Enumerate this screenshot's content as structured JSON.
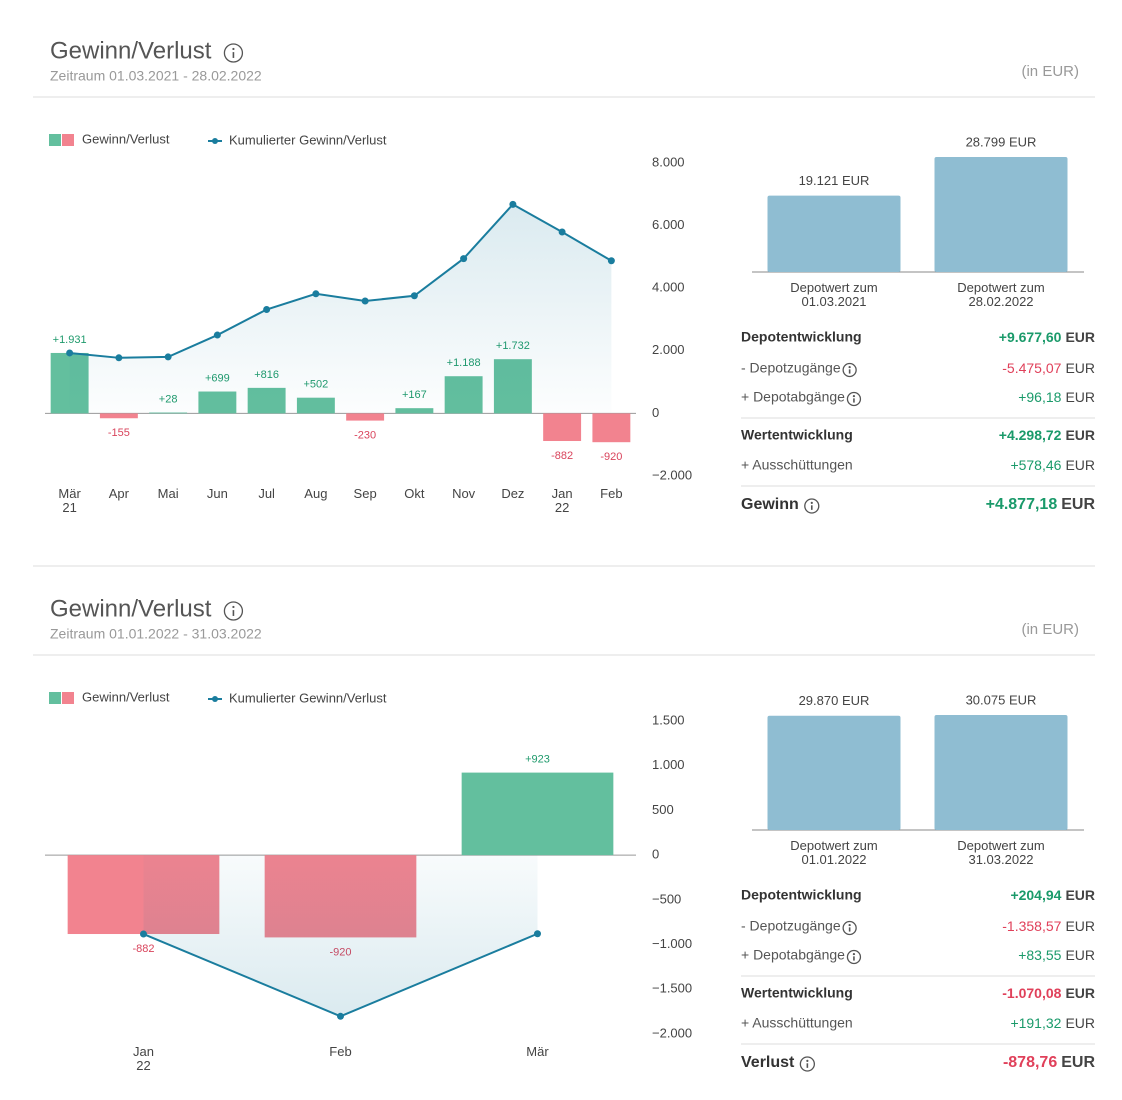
{
  "panels": [
    {
      "title": "Gewinn/Verlust",
      "period": "Zeitraum 01.03.2021 - 28.02.2022",
      "unit": "(in EUR)",
      "rows": [
        {
          "label": "Depotentwicklung",
          "value": "+9.677,60",
          "currency": "EUR"
        },
        {
          "label": "- Depotzugänge",
          "value": "-5.475,07",
          "currency": "EUR"
        },
        {
          "label": "+ Depotabgänge",
          "value": "+96,18",
          "currency": "EUR"
        },
        {
          "label": "Wertentwicklung",
          "value": "+4.298,72",
          "currency": "EUR"
        },
        {
          "label": "+ Ausschüttungen",
          "value": "+578,46",
          "currency": "EUR"
        },
        {
          "label": "Gewinn",
          "value": "+4.877,18",
          "currency": "EUR"
        }
      ]
    },
    {
      "title": "Gewinn/Verlust",
      "period": "Zeitraum 01.01.2022 - 31.03.2022",
      "unit": "(in EUR)",
      "rows": [
        {
          "label": "Depotentwicklung",
          "value": "+204,94",
          "currency": "EUR"
        },
        {
          "label": "- Depotzugänge",
          "value": "-1.358,57",
          "currency": "EUR"
        },
        {
          "label": "+ Depotabgänge",
          "value": "+83,55",
          "currency": "EUR"
        },
        {
          "label": "Wertentwicklung",
          "value": "-1.070,08",
          "currency": "EUR"
        },
        {
          "label": "+ Ausschüttungen",
          "value": "+191,32",
          "currency": "EUR"
        },
        {
          "label": "Verlust",
          "value": "-878,76",
          "currency": "EUR"
        }
      ]
    }
  ],
  "chart_data": [
    {
      "type": "combo",
      "categories": [
        "Mär\n21",
        "Apr",
        "Mai",
        "Jun",
        "Jul",
        "Aug",
        "Sep",
        "Okt",
        "Nov",
        "Dez",
        "Jan\n22",
        "Feb"
      ],
      "series": [
        {
          "name": "Gewinn/Verlust",
          "type": "bar",
          "color": "#63bf9e",
          "negative_color": "#f2838f",
          "values": [
            1931,
            -155,
            28,
            699,
            816,
            502,
            -230,
            167,
            1188,
            1732,
            -882,
            -920
          ],
          "value_labels": [
            "+1.931",
            "-155",
            "+28",
            "+699",
            "+816",
            "+502",
            "-230",
            "+167",
            "+1.188",
            "+1.732",
            "-882",
            "-920"
          ]
        },
        {
          "name": "Kumulierter Gewinn/Verlust",
          "type": "line",
          "color": "#1a7d9e",
          "values": [
            1931,
            1776,
            1804,
            2503,
            3319,
            3821,
            3591,
            3758,
            4946,
            6678,
            5796,
            4876
          ]
        }
      ],
      "ylim": [
        -2000,
        8000
      ],
      "yticks": [
        {
          "value": 8000,
          "label": "8.000"
        },
        {
          "value": 6000,
          "label": "6.000"
        },
        {
          "value": 4000,
          "label": "4.000"
        },
        {
          "value": 2000,
          "label": "2.000"
        },
        0,
        {
          "value": -2000,
          "label": "−2.000"
        }
      ]
    },
    {
      "type": "bar",
      "categories": [
        "Depotwert zum\n01.03.2021",
        "Depotwert zum\n28.02.2022"
      ],
      "values": [
        19121,
        28799
      ],
      "value_labels": [
        "19.121 EUR",
        "28.799 EUR"
      ],
      "color": "#8fbdd2"
    },
    {
      "type": "combo",
      "categories": [
        "Jan\n22",
        "Feb",
        "Mär"
      ],
      "series": [
        {
          "name": "Gewinn/Verlust",
          "type": "bar",
          "color": "#63bf9e",
          "negative_color": "#f2838f",
          "values": [
            -882,
            -920,
            923
          ],
          "value_labels": [
            "-882",
            "-920",
            "+923"
          ]
        },
        {
          "name": "Kumulierter Gewinn/Verlust",
          "type": "line",
          "color": "#1a7d9e",
          "values": [
            -882,
            -1802,
            -879
          ]
        }
      ],
      "ylim": [
        -2000,
        1500
      ],
      "yticks": [
        {
          "value": 1500,
          "label": "1.500"
        },
        {
          "value": 1000,
          "label": "1.000"
        },
        500,
        0,
        {
          "value": -500,
          "label": "−500"
        },
        {
          "value": -1000,
          "label": "−1.000"
        },
        {
          "value": -1500,
          "label": "−1.500"
        },
        {
          "value": -2000,
          "label": "−2.000"
        }
      ]
    },
    {
      "type": "bar",
      "categories": [
        "Depotwert zum\n01.01.2022",
        "Depotwert zum\n31.03.2022"
      ],
      "values": [
        29870,
        30075
      ],
      "value_labels": [
        "29.870 EUR",
        "30.075 EUR"
      ],
      "color": "#8fbdd2"
    }
  ]
}
